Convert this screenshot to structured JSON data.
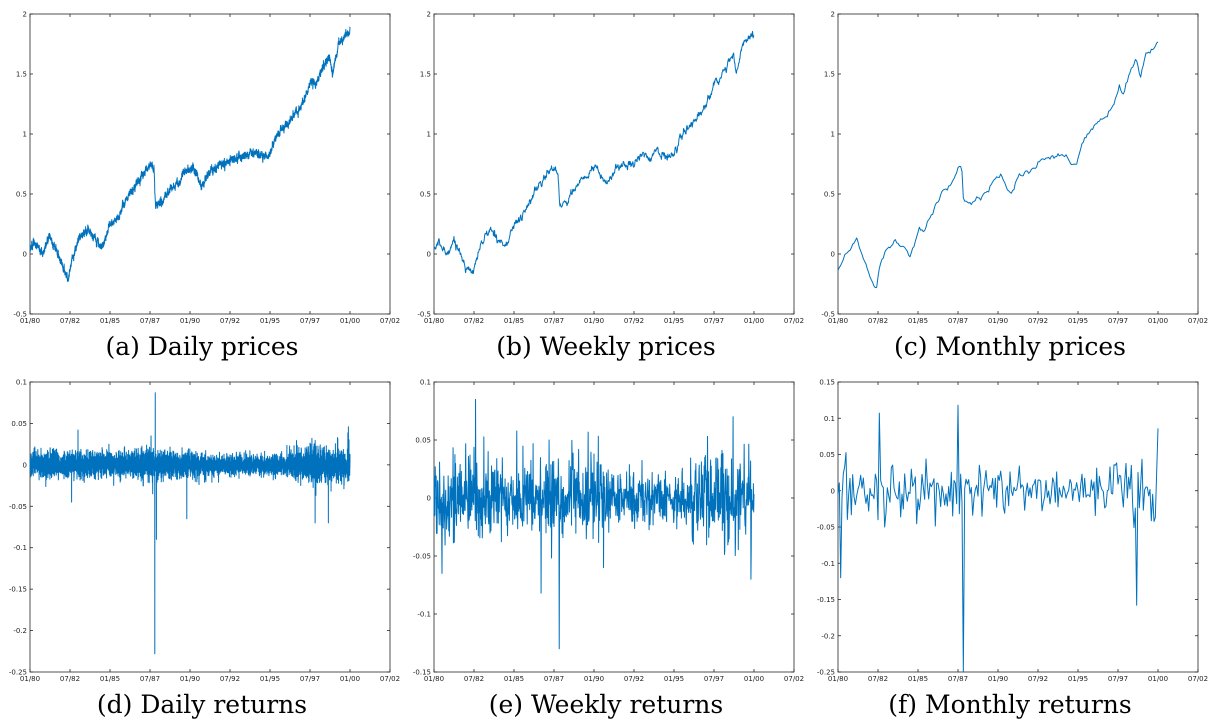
{
  "colors": {
    "series": "#0072BD",
    "axis": "#262626"
  },
  "chart_data": [
    {
      "type": "line",
      "title": "",
      "caption": "(a) Daily prices",
      "xlabel": "",
      "ylabel": "",
      "x_ticks": [
        "01/80",
        "07/82",
        "01/85",
        "07/87",
        "01/90",
        "07/92",
        "01/95",
        "07/97",
        "01/00",
        "07/02"
      ],
      "y_ticks": [
        "-0.5",
        "0",
        "0.5",
        "1",
        "1.5",
        "2"
      ],
      "xlim": [
        1980.0,
        2002.5
      ],
      "ylim": [
        -0.5,
        2
      ],
      "frequency": "daily",
      "grid": false,
      "series": [
        {
          "x": [
            1980.0,
            1980.3,
            1980.8,
            1981.2,
            1981.6,
            1982.0,
            1982.4,
            1982.6,
            1983.0,
            1983.5,
            1984.0,
            1984.5,
            1985.0,
            1985.5,
            1986.0,
            1986.5,
            1987.0,
            1987.5,
            1987.75,
            1987.85,
            1988.3,
            1988.8,
            1989.3,
            1989.8,
            1990.2,
            1990.6,
            1990.8,
            1991.3,
            1992.0,
            1992.5,
            1993.0,
            1993.5,
            1994.0,
            1994.5,
            1994.9,
            1995.3,
            1995.8,
            1996.3,
            1996.8,
            1997.3,
            1997.6,
            1997.8,
            1998.3,
            1998.7,
            1998.9,
            1999.3,
            1999.7,
            2000.0
          ],
          "y": [
            0.05,
            0.1,
            0.0,
            0.15,
            0.05,
            -0.1,
            -0.2,
            -0.05,
            0.1,
            0.2,
            0.15,
            0.05,
            0.25,
            0.3,
            0.45,
            0.55,
            0.65,
            0.75,
            0.7,
            0.4,
            0.45,
            0.55,
            0.6,
            0.7,
            0.72,
            0.6,
            0.58,
            0.7,
            0.75,
            0.78,
            0.8,
            0.83,
            0.85,
            0.82,
            0.8,
            0.95,
            1.05,
            1.12,
            1.2,
            1.35,
            1.45,
            1.4,
            1.55,
            1.65,
            1.5,
            1.75,
            1.82,
            1.85
          ]
        }
      ]
    },
    {
      "type": "line",
      "title": "",
      "caption": "(b) Weekly prices",
      "xlabel": "",
      "ylabel": "",
      "x_ticks": [
        "01/80",
        "07/82",
        "01/85",
        "07/87",
        "01/90",
        "07/92",
        "01/95",
        "07/97",
        "01/00",
        "07/02"
      ],
      "y_ticks": [
        "-0.5",
        "0",
        "0.5",
        "1",
        "1.5",
        "2"
      ],
      "xlim": [
        1980.0,
        2002.5
      ],
      "ylim": [
        -0.5,
        2
      ],
      "frequency": "weekly",
      "grid": false,
      "series": [
        {
          "x": [
            1980.0,
            1980.3,
            1980.8,
            1981.2,
            1981.6,
            1982.0,
            1982.4,
            1982.6,
            1983.0,
            1983.5,
            1984.0,
            1984.5,
            1985.0,
            1985.5,
            1986.0,
            1986.5,
            1987.0,
            1987.5,
            1987.75,
            1987.85,
            1988.3,
            1988.8,
            1989.3,
            1989.8,
            1990.2,
            1990.6,
            1990.8,
            1991.3,
            1992.0,
            1992.5,
            1993.0,
            1993.5,
            1994.0,
            1994.5,
            1994.9,
            1995.3,
            1995.8,
            1996.3,
            1996.8,
            1997.3,
            1997.6,
            1997.8,
            1998.3,
            1998.7,
            1998.9,
            1999.3,
            1999.7,
            2000.0
          ],
          "y": [
            0.05,
            0.08,
            0.0,
            0.12,
            0.03,
            -0.1,
            -0.18,
            -0.05,
            0.1,
            0.2,
            0.15,
            0.05,
            0.25,
            0.3,
            0.45,
            0.55,
            0.65,
            0.73,
            0.68,
            0.4,
            0.45,
            0.55,
            0.6,
            0.7,
            0.72,
            0.6,
            0.58,
            0.7,
            0.75,
            0.78,
            0.8,
            0.82,
            0.85,
            0.82,
            0.8,
            0.95,
            1.05,
            1.12,
            1.2,
            1.35,
            1.45,
            1.4,
            1.55,
            1.65,
            1.5,
            1.75,
            1.8,
            1.85
          ]
        }
      ]
    },
    {
      "type": "line",
      "title": "",
      "caption": "(c) Monthly prices",
      "xlabel": "",
      "ylabel": "",
      "x_ticks": [
        "01/80",
        "07/82",
        "01/85",
        "07/87",
        "01/90",
        "07/92",
        "01/95",
        "07/97",
        "01/00",
        "07/02"
      ],
      "y_ticks": [
        "-0.5",
        "0",
        "0.5",
        "1",
        "1.5",
        "2"
      ],
      "xlim": [
        1980.0,
        2002.5
      ],
      "ylim": [
        -0.5,
        2
      ],
      "frequency": "monthly",
      "grid": false,
      "series": [
        {
          "x": [
            1980.0,
            1980.3,
            1980.8,
            1981.2,
            1981.6,
            1982.0,
            1982.4,
            1982.6,
            1983.0,
            1983.5,
            1984.0,
            1984.5,
            1985.0,
            1985.5,
            1986.0,
            1986.5,
            1987.0,
            1987.5,
            1987.75,
            1987.85,
            1988.3,
            1988.8,
            1989.3,
            1989.8,
            1990.2,
            1990.6,
            1990.8,
            1991.3,
            1992.0,
            1992.5,
            1993.0,
            1993.5,
            1994.0,
            1994.5,
            1994.9,
            1995.3,
            1995.8,
            1996.3,
            1996.8,
            1997.3,
            1997.6,
            1997.8,
            1998.3,
            1998.7,
            1998.9,
            1999.3,
            1999.7,
            2000.0
          ],
          "y": [
            -0.12,
            -0.02,
            0.05,
            0.1,
            -0.02,
            -0.18,
            -0.28,
            -0.1,
            0.05,
            0.15,
            0.1,
            0.0,
            0.2,
            0.25,
            0.4,
            0.5,
            0.58,
            0.68,
            0.62,
            0.35,
            0.42,
            0.5,
            0.55,
            0.63,
            0.66,
            0.55,
            0.52,
            0.65,
            0.7,
            0.74,
            0.76,
            0.78,
            0.8,
            0.76,
            0.74,
            0.9,
            1.0,
            1.08,
            1.15,
            1.3,
            1.4,
            1.35,
            1.5,
            1.6,
            1.45,
            1.7,
            1.75,
            1.78
          ]
        }
      ]
    },
    {
      "type": "line",
      "title": "",
      "caption": "(d) Daily returns",
      "xlabel": "",
      "ylabel": "",
      "x_ticks": [
        "01/80",
        "07/82",
        "01/85",
        "07/87",
        "01/90",
        "07/92",
        "01/95",
        "07/97",
        "01/00",
        "07/02"
      ],
      "y_ticks": [
        "-0.25",
        "-0.2",
        "-0.15",
        "-0.1",
        "-0.05",
        "0",
        "0.05",
        "0.1"
      ],
      "xlim": [
        1980.0,
        2002.5
      ],
      "ylim": [
        -0.25,
        0.1
      ],
      "frequency": "daily",
      "noise_scale": 0.013,
      "grid": false,
      "spikes": [
        {
          "x": 1987.8,
          "y": -0.228
        },
        {
          "x": 1987.83,
          "y": 0.087
        },
        {
          "x": 1987.9,
          "y": -0.09
        },
        {
          "x": 1989.8,
          "y": -0.065
        },
        {
          "x": 1997.82,
          "y": -0.07
        },
        {
          "x": 1998.65,
          "y": -0.07
        },
        {
          "x": 1983.0,
          "y": 0.042
        },
        {
          "x": 1999.9,
          "y": 0.046
        },
        {
          "x": 1982.6,
          "y": -0.045
        }
      ]
    },
    {
      "type": "line",
      "title": "",
      "caption": "(e) Weekly returns",
      "xlabel": "",
      "ylabel": "",
      "x_ticks": [
        "01/80",
        "07/82",
        "01/85",
        "07/87",
        "01/90",
        "07/92",
        "01/95",
        "07/97",
        "01/00",
        "07/02"
      ],
      "y_ticks": [
        "-0.15",
        "-0.1",
        "-0.05",
        "0",
        "0.05",
        "0.1"
      ],
      "xlim": [
        1980.0,
        2002.5
      ],
      "ylim": [
        -0.15,
        0.1
      ],
      "frequency": "weekly",
      "noise_scale": 0.03,
      "grid": false,
      "spikes": [
        {
          "x": 1987.82,
          "y": -0.13
        },
        {
          "x": 1982.6,
          "y": 0.085
        },
        {
          "x": 1986.7,
          "y": -0.082
        },
        {
          "x": 1980.5,
          "y": -0.065
        },
        {
          "x": 1999.8,
          "y": -0.07
        },
        {
          "x": 1998.7,
          "y": 0.07
        },
        {
          "x": 1990.6,
          "y": -0.06
        }
      ]
    },
    {
      "type": "line",
      "title": "",
      "caption": "(f) Monthly returns",
      "xlabel": "",
      "ylabel": "",
      "x_ticks": [
        "01/80",
        "07/82",
        "01/85",
        "07/87",
        "01/90",
        "07/92",
        "01/95",
        "07/97",
        "01/00",
        "07/02"
      ],
      "y_ticks": [
        "-0.25",
        "-0.2",
        "-0.15",
        "-0.1",
        "-0.05",
        "0",
        "0.05",
        "0.1",
        "0.15"
      ],
      "xlim": [
        1980.0,
        2002.5
      ],
      "ylim": [
        -0.25,
        0.15
      ],
      "frequency": "monthly",
      "noise_scale": 0.035,
      "grid": false,
      "spikes": [
        {
          "x": 1987.8,
          "y": -0.25
        },
        {
          "x": 1987.5,
          "y": 0.118
        },
        {
          "x": 1998.65,
          "y": -0.158
        },
        {
          "x": 1980.2,
          "y": -0.12
        },
        {
          "x": 1982.6,
          "y": 0.107
        },
        {
          "x": 2000.0,
          "y": 0.086
        },
        {
          "x": 1982.9,
          "y": -0.05
        }
      ]
    }
  ]
}
